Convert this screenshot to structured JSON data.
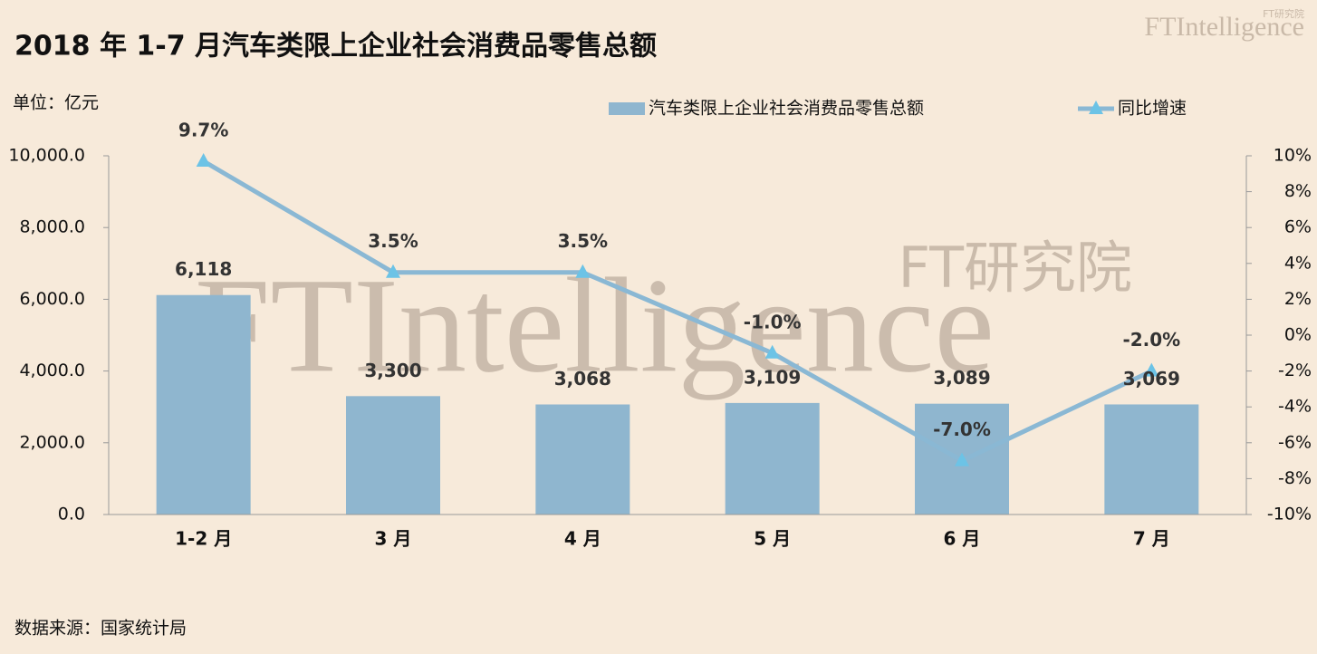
{
  "chart_data": {
    "type": "combo",
    "title": "2018 年 1-7 月汽车类限上企业社会消费品零售总额",
    "unit_label": "单位：亿元",
    "source": "数据来源：国家统计局",
    "watermark": "FTIntelligence",
    "watermark_sub": "FT研究院",
    "categories": [
      "1-2 月",
      "3 月",
      "4 月",
      "5 月",
      "6 月",
      "7 月"
    ],
    "series": [
      {
        "name": "汽车类限上企业社会消费品零售总额",
        "type": "bar",
        "color": "#8fb6cf",
        "values": [
          6118,
          3300,
          3068,
          3109,
          3089,
          3069
        ],
        "value_labels": [
          "6,118",
          "3,300",
          "3,068",
          "3,109",
          "3,089",
          "3,069"
        ]
      },
      {
        "name": "同比增速",
        "type": "line",
        "axis": "y2",
        "color": "#8ab8d4",
        "marker_color": "#6cc3e6",
        "values": [
          9.7,
          3.5,
          3.5,
          -1.0,
          -7.0,
          -2.0
        ],
        "value_labels": [
          "9.7%",
          "3.5%",
          "3.5%",
          "-1.0%",
          "-7.0%",
          "-2.0%"
        ]
      }
    ],
    "ylim": [
      0,
      10000
    ],
    "yticks": [
      {
        "value": 0,
        "label": "0.0"
      },
      {
        "value": 2000,
        "label": "2,000.0"
      },
      {
        "value": 4000,
        "label": "4,000.0"
      },
      {
        "value": 6000,
        "label": "6,000.0"
      },
      {
        "value": 8000,
        "label": "8,000.0"
      },
      {
        "value": 10000,
        "label": "10,000.0"
      }
    ],
    "y2lim": [
      -10,
      10
    ],
    "y2ticks": [
      {
        "value": -10,
        "label": "-10%"
      },
      {
        "value": -8,
        "label": "-8%"
      },
      {
        "value": -6,
        "label": "-6%"
      },
      {
        "value": -4,
        "label": "-4%"
      },
      {
        "value": -2,
        "label": "-2%"
      },
      {
        "value": 0,
        "label": "0%"
      },
      {
        "value": 2,
        "label": "2%"
      },
      {
        "value": 4,
        "label": "4%"
      },
      {
        "value": 6,
        "label": "6%"
      },
      {
        "value": 8,
        "label": "8%"
      },
      {
        "value": 10,
        "label": "10%"
      }
    ],
    "grid": false,
    "legend": "top"
  }
}
